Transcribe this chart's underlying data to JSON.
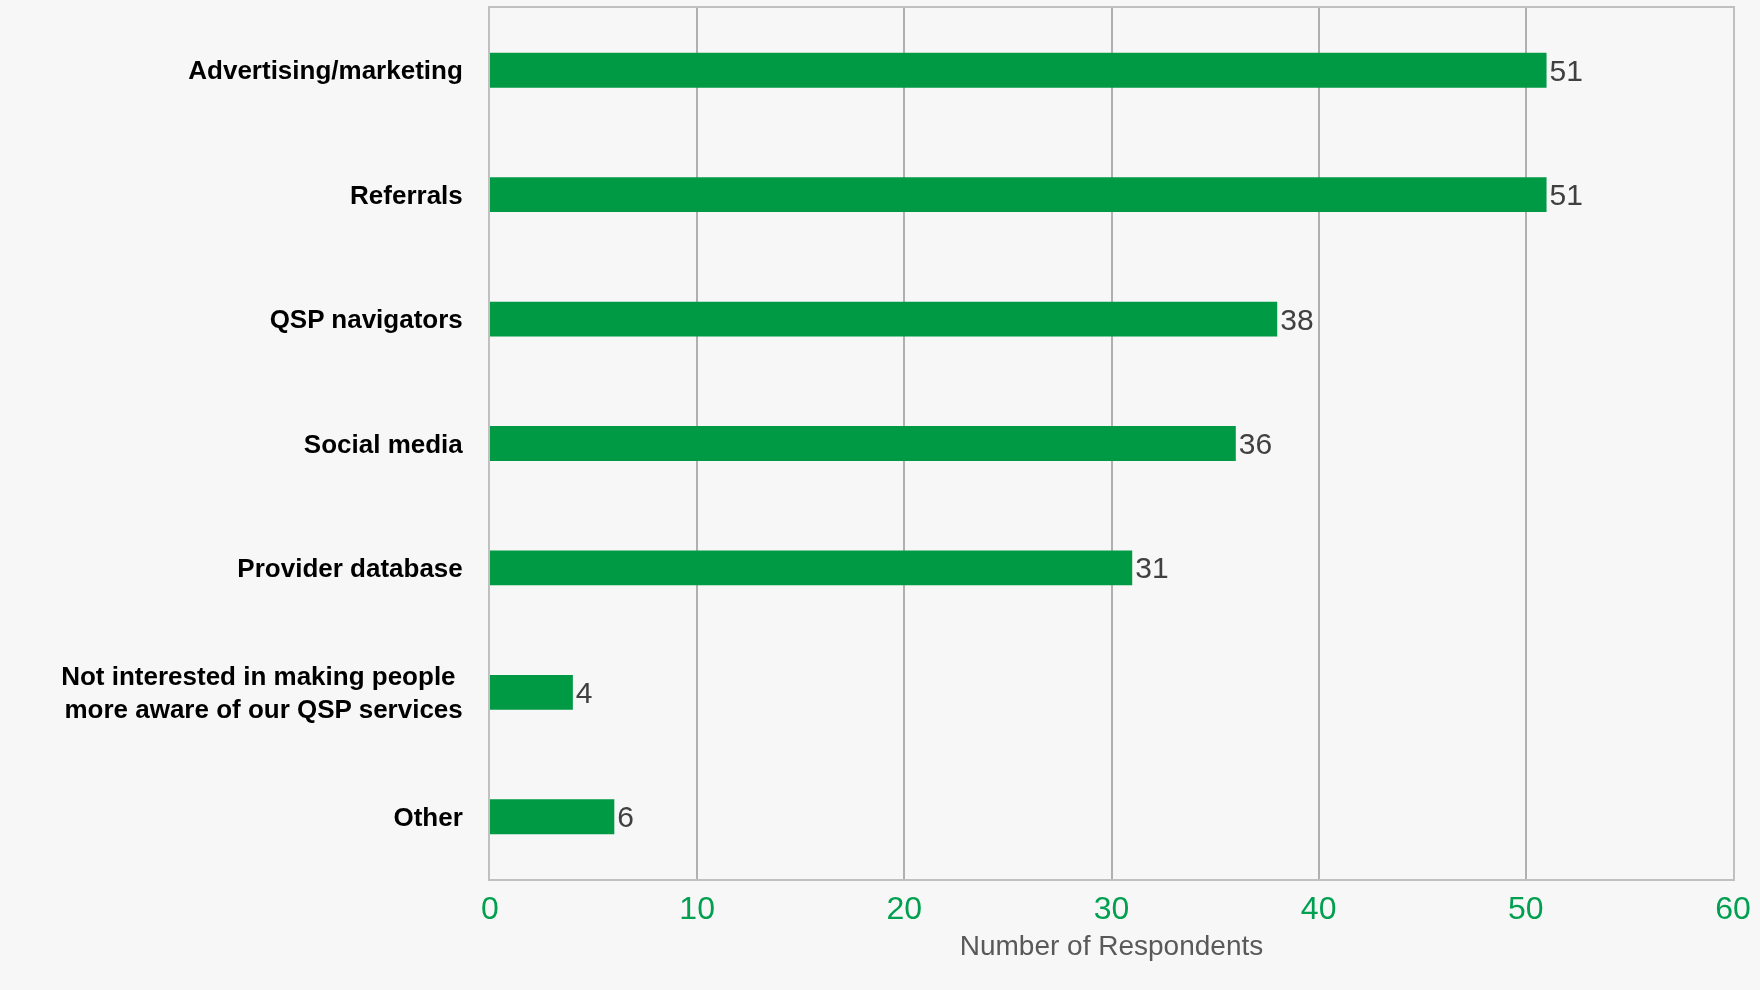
{
  "chart_data": {
    "type": "bar",
    "orientation": "horizontal",
    "xlabel": "Number of Respondents",
    "categories": [
      "Advertising/marketing",
      "Referrals",
      "QSP navigators",
      "Social media",
      "Provider database",
      "Not interested in making people \nmore aware of our QSP services",
      "Other"
    ],
    "values": [
      51,
      51,
      38,
      36,
      31,
      4,
      6
    ],
    "color": "#009a44",
    "xlim": [
      0,
      60
    ],
    "xticks": [
      0,
      10,
      20,
      30,
      40,
      50,
      60
    ],
    "grid": "x",
    "data_labels": true
  }
}
